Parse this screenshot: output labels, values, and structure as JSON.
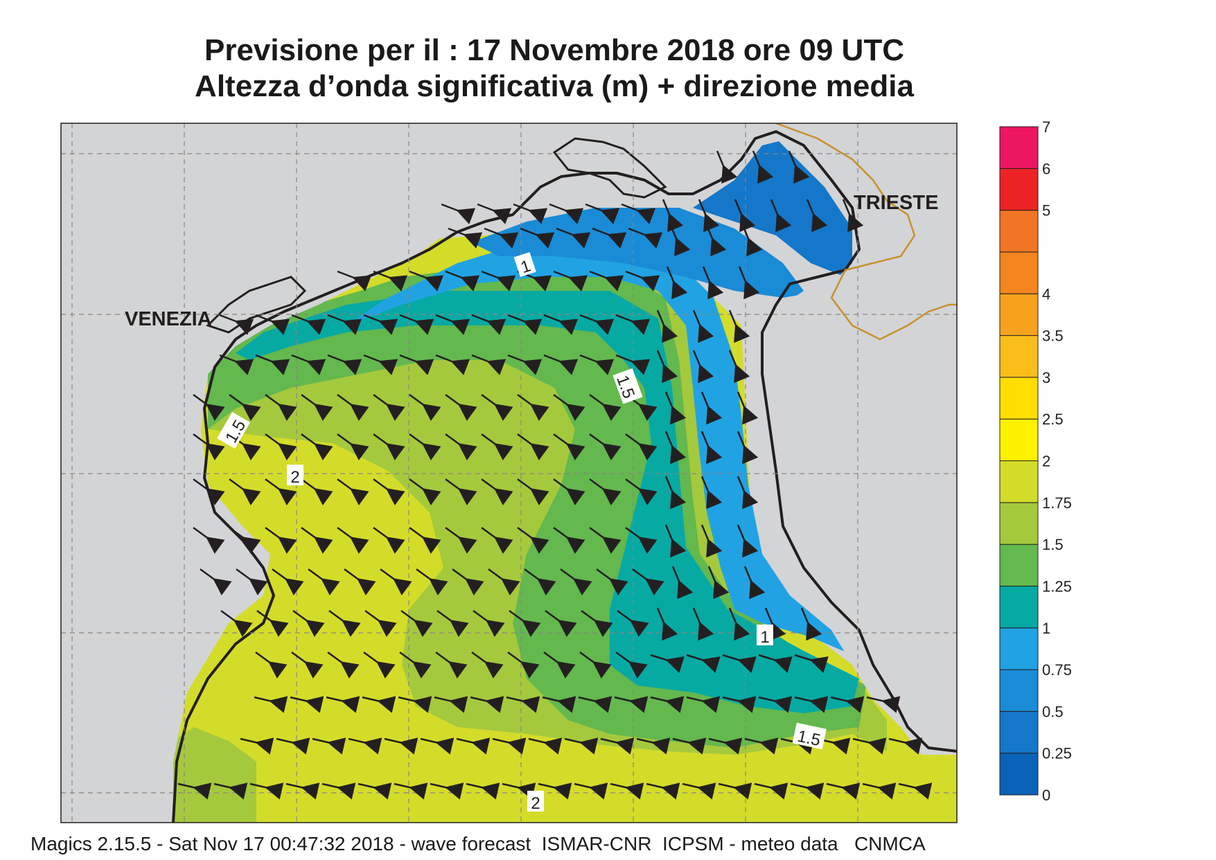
{
  "title": {
    "line1": "Previsione per il  :  17 Novembre  2018   ore 09 UTC",
    "line2": "Altezza d’onda significativa (m) + direzione media"
  },
  "places": {
    "venezia": "VENEZIA",
    "trieste": "TRIESTE"
  },
  "contour_labels": [
    "1",
    "1.5",
    "1.5",
    "2",
    "1",
    "1.5",
    "2"
  ],
  "legend": {
    "levels": [
      "0",
      "0.25",
      "0.5",
      "0.75",
      "1",
      "1.25",
      "1.5",
      "1.75",
      "2",
      "2.5",
      "3",
      "3.5",
      "4",
      "4.5",
      "5",
      "6",
      "7"
    ],
    "visible_labels": [
      "0",
      "0.25",
      "0.5",
      "0.75",
      "1",
      "1.25",
      "1.5",
      "1.75",
      "2",
      "2.5",
      "3",
      "3.5",
      "4",
      "5",
      "6",
      "7"
    ],
    "colors": [
      "#0a62b8",
      "#1477c9",
      "#1a8bd6",
      "#21a3e3",
      "#07a9a3",
      "#63b84e",
      "#a5c93c",
      "#d4dc2a",
      "#fff200",
      "#ffde00",
      "#f9be1a",
      "#f7a21c",
      "#f4851f",
      "#f27524",
      "#ed2224",
      "#ed1663"
    ]
  },
  "colors": {
    "land": "#d3d4d6",
    "coast": "#231f20",
    "border": "#c8912a",
    "grid": "#8a8580"
  },
  "footer": "Magics 2.15.5 - Sat Nov 17 00:47:32 2018 - wave forecast  ISMAR-CNR  ICPSM - meteo data   CNMCA"
}
